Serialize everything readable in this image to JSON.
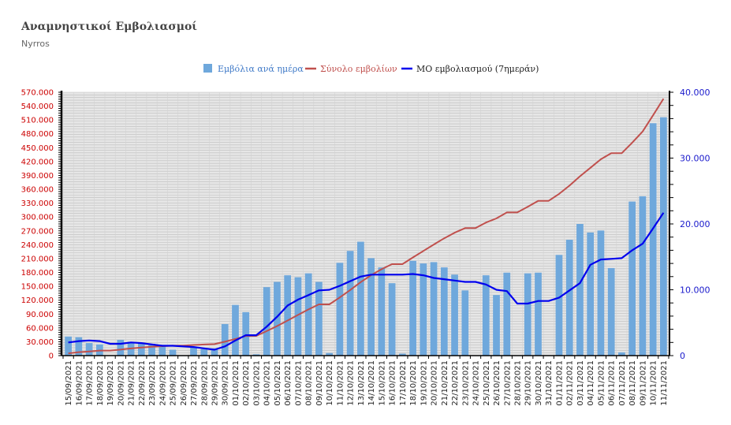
{
  "title": "Αναμνηστικοί Εμβολιασμοί",
  "subtitle": "Nyrros",
  "chart_data": {
    "type": "bar",
    "legend_position": "top-center",
    "grid": true,
    "categories": [
      "15/09/2021",
      "16/09/2021",
      "17/09/2021",
      "18/09/2021",
      "19/09/2021",
      "20/09/2021",
      "21/09/2021",
      "22/09/2021",
      "23/09/2021",
      "24/09/2021",
      "25/09/2021",
      "26/09/2021",
      "27/09/2021",
      "28/09/2021",
      "29/09/2021",
      "30/09/2021",
      "01/10/2021",
      "02/10/2021",
      "03/10/2021",
      "04/10/2021",
      "05/10/2021",
      "06/10/2021",
      "07/10/2021",
      "08/10/2021",
      "09/10/2021",
      "10/10/2021",
      "11/10/2021",
      "12/10/2021",
      "13/10/2021",
      "14/10/2021",
      "15/10/2021",
      "16/10/2021",
      "17/10/2021",
      "18/10/2021",
      "19/10/2021",
      "20/10/2021",
      "21/10/2021",
      "22/10/2021",
      "23/10/2021",
      "24/10/2021",
      "25/10/2021",
      "26/10/2021",
      "27/10/2021",
      "28/10/2021",
      "29/10/2021",
      "30/10/2021",
      "31/10/2021",
      "01/11/2021",
      "02/11/2021",
      "03/11/2021",
      "04/11/2021",
      "05/11/2021",
      "06/11/2021",
      "07/11/2021",
      "08/11/2021",
      "09/11/2021",
      "10/11/2021",
      "11/11/2021"
    ],
    "left_axis": {
      "ylim": [
        0,
        570000
      ],
      "ticks": [
        "0",
        "30.000",
        "60.000",
        "90.000",
        "120.000",
        "150.000",
        "180.000",
        "210.000",
        "240.000",
        "270.000",
        "300.000",
        "330.000",
        "360.000",
        "390.000",
        "420.000",
        "450.000",
        "480.000",
        "510.000",
        "540.000",
        "570.000"
      ],
      "color": "#cc0000"
    },
    "right_axis": {
      "ylim": [
        0,
        40000
      ],
      "ticks": [
        "0",
        "10.000",
        "20.000",
        "30.000",
        "40.000"
      ],
      "color": "#1a1acc"
    },
    "series": [
      {
        "name": "Εμβόλια ανά ημέρα",
        "type": "bar",
        "axis": "right",
        "color": "#6fa8dc",
        "values": [
          2900,
          2800,
          1900,
          1700,
          0,
          2400,
          2100,
          1900,
          1800,
          1500,
          900,
          0,
          1300,
          1000,
          1100,
          4800,
          7700,
          6600,
          200,
          10400,
          11200,
          12200,
          11900,
          12500,
          11200,
          400,
          14100,
          15900,
          17300,
          14800,
          13400,
          11000,
          300,
          14400,
          14000,
          14200,
          13400,
          12300,
          9900,
          0,
          12200,
          9200,
          12600,
          0,
          12500,
          12600,
          0,
          15300,
          17600,
          20000,
          18700,
          19000,
          13300,
          500,
          23400,
          24200,
          35300,
          36200
        ]
      },
      {
        "name": "Σύνολο εμβολίων",
        "type": "line",
        "axis": "left",
        "color": "#c0504d",
        "values": [
          5000,
          7500,
          9000,
          11000,
          11000,
          13000,
          15500,
          17500,
          19200,
          20500,
          21500,
          21500,
          23000,
          24000,
          25000,
          30000,
          36000,
          42500,
          42700,
          53000,
          64000,
          76000,
          88000,
          100000,
          111000,
          111000,
          126000,
          142000,
          159000,
          174000,
          187000,
          198000,
          198000,
          212500,
          226500,
          240500,
          254000,
          266000,
          276000,
          276000,
          288000,
          297000,
          310000,
          310000,
          322000,
          335000,
          335000,
          350000,
          368000,
          388000,
          406500,
          425000,
          438000,
          438000,
          461000,
          485000,
          520000,
          556000
        ]
      },
      {
        "name": "ΜΟ εμβολιασμού (7ημεράν)",
        "type": "line",
        "axis": "right",
        "color": "#0000ee",
        "values": [
          2000,
          2200,
          2300,
          2200,
          1800,
          1800,
          2000,
          1900,
          1700,
          1500,
          1500,
          1400,
          1300,
          1100,
          900,
          1400,
          2300,
          3100,
          3100,
          4400,
          5900,
          7600,
          8500,
          9200,
          9900,
          10000,
          10600,
          11300,
          12000,
          12300,
          12300,
          12300,
          12300,
          12400,
          12200,
          11800,
          11600,
          11400,
          11200,
          11200,
          10800,
          10000,
          9800,
          7900,
          7900,
          8300,
          8300,
          8800,
          9900,
          11000,
          13800,
          14600,
          14700,
          14800,
          16000,
          17000,
          19300,
          21700
        ]
      }
    ]
  }
}
